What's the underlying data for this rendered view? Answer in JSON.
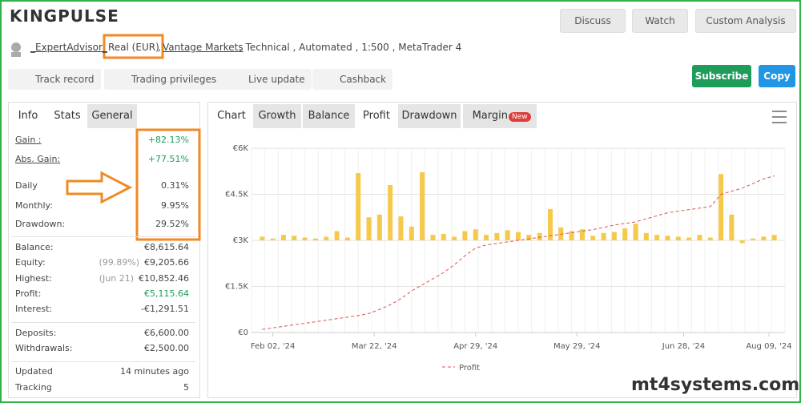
{
  "header": {
    "title": "KINGPULSE",
    "buttons": [
      "Discuss",
      "Watch",
      "Custom Analysis"
    ]
  },
  "account": {
    "user": "_ExpertAdvisor_",
    "items": [
      "Real (EUR)",
      ",",
      "Vantage Markets",
      ", Technical , Automated , 1:500 , MetaTrader 4"
    ]
  },
  "badges": [
    "Track record",
    "Trading privileges",
    "Live update",
    "Cashback"
  ],
  "actions": [
    "Subscribe",
    "Copy"
  ],
  "stats": {
    "tabs": [
      "Info",
      "Stats",
      "General"
    ],
    "rows": [
      {
        "label": "Gain :",
        "value": "+82.13%"
      },
      {
        "label": "Abs. Gain:",
        "value": "+77.51%"
      },
      {
        "label": "Daily",
        "value": "0.31%"
      },
      {
        "label": "Monthly:",
        "value": "9.95%"
      },
      {
        "label": "Drawdown:",
        "value": "29.52%"
      },
      {
        "label": "Balance:",
        "value": "€8,615.64"
      },
      {
        "label": "Equity:",
        "note": "(99.89%)",
        "value": "€9,205.66"
      },
      {
        "label": "Highest:",
        "note": "(Jun 21)",
        "value": "€10,852.46"
      },
      {
        "label": "Profit:",
        "value": "€5,115.64"
      },
      {
        "label": "Interest:",
        "value": "-€1,291.51"
      },
      {
        "label": "Deposits:",
        "value": "€6,600.00"
      },
      {
        "label": "Withdrawals:",
        "value": "€2,500.00"
      },
      {
        "label": "Updated",
        "value": "14 minutes ago"
      },
      {
        "label": "Tracking",
        "value": "5"
      }
    ]
  },
  "chart_tabs": {
    "tabs": [
      "Chart",
      "Growth",
      "Balance",
      "Profit",
      "Drawdown",
      "Margin"
    ],
    "new": "New"
  },
  "chart_data": {
    "type": "line",
    "x": [
      2,
      4,
      6,
      8,
      10,
      12,
      14,
      16,
      18,
      20,
      22,
      24,
      26,
      28,
      30,
      32,
      34,
      36,
      38,
      40,
      42,
      44,
      46,
      48,
      50,
      52,
      54,
      56,
      58,
      60,
      62,
      64,
      66,
      68,
      70,
      72,
      74,
      76,
      78,
      80,
      82,
      84,
      86,
      88,
      90,
      92,
      94,
      96,
      98
    ],
    "xlim": [
      0,
      100
    ],
    "xticks": [
      {
        "value": 4,
        "label": "Feb 02, '24"
      },
      {
        "value": 23,
        "label": "Mar 22, '24"
      },
      {
        "value": 42,
        "label": "Apr 29, '24"
      },
      {
        "value": 61,
        "label": "May 29, '24"
      },
      {
        "value": 81,
        "label": "Jun 28, '24"
      },
      {
        "value": 97,
        "label": "Aug 09, '24"
      }
    ],
    "ylim": [
      0,
      6000
    ],
    "yticks": [
      {
        "value": 0,
        "label": "€0"
      },
      {
        "value": 1500,
        "label": "€1.5K"
      },
      {
        "value": 3000,
        "label": "€3K"
      },
      {
        "value": 4500,
        "label": "€4.5K"
      },
      {
        "value": 6000,
        "label": "€6K"
      }
    ],
    "y2lim": [
      -1000,
      1000
    ],
    "grid": true,
    "series": [
      {
        "color": "#f5c94a",
        "axis": "y2",
        "values": [
          40,
          20,
          60,
          50,
          30,
          20,
          40,
          100,
          30,
          730,
          250,
          280,
          600,
          260,
          150,
          740,
          60,
          70,
          40,
          100,
          120,
          60,
          80,
          110,
          90,
          60,
          80,
          340,
          140,
          100,
          120,
          50,
          80,
          90,
          130,
          180,
          80,
          60,
          50,
          40,
          30,
          60,
          30,
          720,
          280,
          -30,
          20,
          40,
          60
        ]
      },
      {
        "name": "Profit",
        "color": "#d9534f",
        "values": [
          100,
          150,
          200,
          250,
          300,
          350,
          400,
          450,
          500,
          550,
          620,
          750,
          900,
          1100,
          1350,
          1550,
          1750,
          1950,
          2200,
          2500,
          2750,
          2850,
          2900,
          2950,
          3000,
          3050,
          3100,
          3150,
          3200,
          3250,
          3300,
          3350,
          3420,
          3500,
          3550,
          3600,
          3700,
          3800,
          3900,
          3950,
          4000,
          4050,
          4100,
          4500,
          4600,
          4700,
          4850,
          5000,
          5100
        ]
      }
    ]
  },
  "watermark": "mt4systems.com"
}
